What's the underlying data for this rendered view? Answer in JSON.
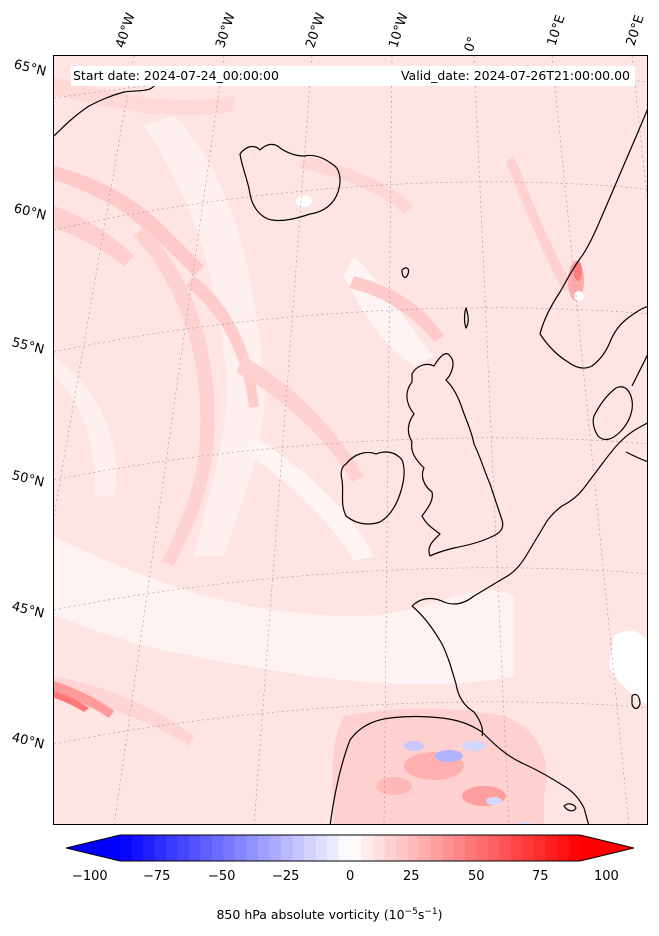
{
  "header": {
    "start_date": "Start date: 2024-07-24_00:00:00",
    "valid_date": "Valid_date: 2024-07-26T21:00:00.00"
  },
  "longitude_labels": [
    "40°W",
    "30°W",
    "20°W",
    "10°W",
    "0°",
    "10°E",
    "20°E"
  ],
  "latitude_labels": [
    "65°N",
    "60°N",
    "55°N",
    "50°N",
    "45°N",
    "40°N"
  ],
  "colorbar": {
    "ticks": [
      "−100",
      "−75",
      "−50",
      "−25",
      "0",
      "25",
      "50",
      "75",
      "100"
    ],
    "min": -100,
    "max": 100,
    "label_prefix": "850 hPa absolute vorticity (10",
    "label_sup1": "−5",
    "label_mid": "s",
    "label_sup2": "−1",
    "label_suffix": ")",
    "colormap": "bwr",
    "low_color": "#0000ff",
    "mid_color": "#ffffff",
    "high_color": "#ff0000"
  },
  "map": {
    "projection": "Lambert conformal",
    "field": "850 hPa absolute vorticity",
    "coastline_color": "#000000",
    "gridline_style": "dotted grey",
    "background_color": "#ffe9e9"
  }
}
